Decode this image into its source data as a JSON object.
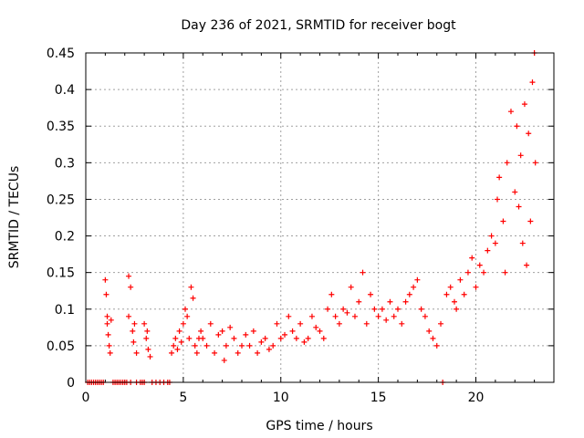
{
  "chart_data": {
    "type": "scatter",
    "title": "Day 236 of 2021, SRMTID for receiver bogt",
    "xlabel": "GPS time / hours",
    "ylabel": "SRMTID / TECUs",
    "xlim": [
      0,
      24
    ],
    "ylim": [
      0,
      0.45
    ],
    "x_ticks": [
      0,
      5,
      10,
      15,
      20
    ],
    "y_ticks": [
      0,
      0.05,
      0.1,
      0.15,
      0.2,
      0.25,
      0.3,
      0.35,
      0.4,
      0.45
    ],
    "x_tick_labels": [
      "0",
      "5",
      "10",
      "15",
      "20"
    ],
    "y_tick_labels": [
      "0",
      "0.05",
      "0.1",
      "0.15",
      "0.2",
      "0.25",
      "0.3",
      "0.35",
      "0.4",
      "0.45"
    ],
    "grid": true,
    "marker": "+",
    "color": "#ff0000",
    "series": [
      {
        "name": "SRMTID",
        "points": [
          [
            0.1,
            0
          ],
          [
            0.2,
            0
          ],
          [
            0.3,
            0
          ],
          [
            0.4,
            0
          ],
          [
            0.5,
            0
          ],
          [
            0.6,
            0
          ],
          [
            0.7,
            0
          ],
          [
            0.8,
            0
          ],
          [
            0.9,
            0
          ],
          [
            1.0,
            0.14
          ],
          [
            1.05,
            0.12
          ],
          [
            1.1,
            0.09
          ],
          [
            1.1,
            0.08
          ],
          [
            1.15,
            0.065
          ],
          [
            1.2,
            0.05
          ],
          [
            1.25,
            0.04
          ],
          [
            1.3,
            0.085
          ],
          [
            1.4,
            0
          ],
          [
            1.5,
            0
          ],
          [
            1.6,
            0
          ],
          [
            1.7,
            0
          ],
          [
            1.8,
            0
          ],
          [
            1.9,
            0
          ],
          [
            2.0,
            0
          ],
          [
            2.1,
            0
          ],
          [
            2.2,
            0.145
          ],
          [
            2.3,
            0.13
          ],
          [
            2.2,
            0.09
          ],
          [
            2.4,
            0.07
          ],
          [
            2.5,
            0.08
          ],
          [
            2.45,
            0.055
          ],
          [
            2.6,
            0.04
          ],
          [
            2.3,
            0
          ],
          [
            2.6,
            0
          ],
          [
            2.8,
            0
          ],
          [
            2.9,
            0
          ],
          [
            3.0,
            0
          ],
          [
            3.0,
            0.08
          ],
          [
            3.1,
            0.06
          ],
          [
            3.2,
            0.045
          ],
          [
            3.15,
            0.07
          ],
          [
            3.3,
            0.035
          ],
          [
            3.4,
            0
          ],
          [
            3.6,
            0
          ],
          [
            3.8,
            0
          ],
          [
            4.0,
            0
          ],
          [
            4.2,
            0
          ],
          [
            4.3,
            0
          ],
          [
            4.4,
            0.04
          ],
          [
            4.5,
            0.05
          ],
          [
            4.6,
            0.06
          ],
          [
            4.7,
            0.045
          ],
          [
            4.8,
            0.07
          ],
          [
            4.9,
            0.055
          ],
          [
            5.0,
            0.08
          ],
          [
            5.1,
            0.1
          ],
          [
            5.2,
            0.09
          ],
          [
            5.3,
            0.06
          ],
          [
            5.4,
            0.13
          ],
          [
            5.5,
            0.115
          ],
          [
            5.6,
            0.05
          ],
          [
            5.7,
            0.04
          ],
          [
            5.8,
            0.06
          ],
          [
            5.9,
            0.07
          ],
          [
            6.0,
            0.06
          ],
          [
            6.2,
            0.05
          ],
          [
            6.4,
            0.08
          ],
          [
            6.6,
            0.04
          ],
          [
            6.8,
            0.065
          ],
          [
            7.0,
            0.07
          ],
          [
            7.1,
            0.03
          ],
          [
            7.2,
            0.05
          ],
          [
            7.4,
            0.075
          ],
          [
            7.6,
            0.06
          ],
          [
            7.8,
            0.04
          ],
          [
            8.0,
            0.05
          ],
          [
            8.2,
            0.065
          ],
          [
            8.4,
            0.05
          ],
          [
            8.6,
            0.07
          ],
          [
            8.8,
            0.04
          ],
          [
            9.0,
            0.055
          ],
          [
            9.2,
            0.06
          ],
          [
            9.4,
            0.045
          ],
          [
            9.6,
            0.05
          ],
          [
            9.8,
            0.08
          ],
          [
            10.0,
            0.06
          ],
          [
            10.2,
            0.065
          ],
          [
            10.4,
            0.09
          ],
          [
            10.6,
            0.07
          ],
          [
            10.8,
            0.06
          ],
          [
            11.0,
            0.08
          ],
          [
            11.2,
            0.055
          ],
          [
            11.4,
            0.06
          ],
          [
            11.6,
            0.09
          ],
          [
            11.8,
            0.075
          ],
          [
            12.0,
            0.07
          ],
          [
            12.2,
            0.06
          ],
          [
            12.4,
            0.1
          ],
          [
            12.6,
            0.12
          ],
          [
            12.8,
            0.09
          ],
          [
            13.0,
            0.08
          ],
          [
            13.2,
            0.1
          ],
          [
            13.4,
            0.095
          ],
          [
            13.6,
            0.13
          ],
          [
            13.8,
            0.09
          ],
          [
            14.0,
            0.11
          ],
          [
            14.2,
            0.15
          ],
          [
            14.4,
            0.08
          ],
          [
            14.6,
            0.12
          ],
          [
            14.8,
            0.1
          ],
          [
            15.0,
            0.09
          ],
          [
            15.2,
            0.1
          ],
          [
            15.4,
            0.085
          ],
          [
            15.6,
            0.11
          ],
          [
            15.8,
            0.09
          ],
          [
            16.0,
            0.1
          ],
          [
            16.2,
            0.08
          ],
          [
            16.4,
            0.11
          ],
          [
            16.6,
            0.12
          ],
          [
            16.8,
            0.13
          ],
          [
            17.0,
            0.14
          ],
          [
            17.2,
            0.1
          ],
          [
            17.4,
            0.09
          ],
          [
            17.6,
            0.07
          ],
          [
            17.8,
            0.06
          ],
          [
            18.0,
            0.05
          ],
          [
            18.2,
            0.08
          ],
          [
            18.3,
            0
          ],
          [
            18.5,
            0.12
          ],
          [
            18.7,
            0.13
          ],
          [
            18.9,
            0.11
          ],
          [
            19.0,
            0.1
          ],
          [
            19.2,
            0.14
          ],
          [
            19.4,
            0.12
          ],
          [
            19.6,
            0.15
          ],
          [
            19.8,
            0.17
          ],
          [
            20.0,
            0.13
          ],
          [
            20.2,
            0.16
          ],
          [
            20.4,
            0.15
          ],
          [
            20.6,
            0.18
          ],
          [
            20.8,
            0.2
          ],
          [
            21.0,
            0.19
          ],
          [
            21.1,
            0.25
          ],
          [
            21.2,
            0.28
          ],
          [
            21.4,
            0.22
          ],
          [
            21.5,
            0.15
          ],
          [
            21.6,
            0.3
          ],
          [
            21.8,
            0.37
          ],
          [
            22.0,
            0.26
          ],
          [
            22.1,
            0.35
          ],
          [
            22.2,
            0.24
          ],
          [
            22.3,
            0.31
          ],
          [
            22.4,
            0.19
          ],
          [
            22.5,
            0.38
          ],
          [
            22.6,
            0.16
          ],
          [
            22.7,
            0.34
          ],
          [
            22.8,
            0.22
          ],
          [
            22.9,
            0.41
          ],
          [
            23.0,
            0.45
          ],
          [
            23.05,
            0.3
          ]
        ]
      }
    ]
  }
}
